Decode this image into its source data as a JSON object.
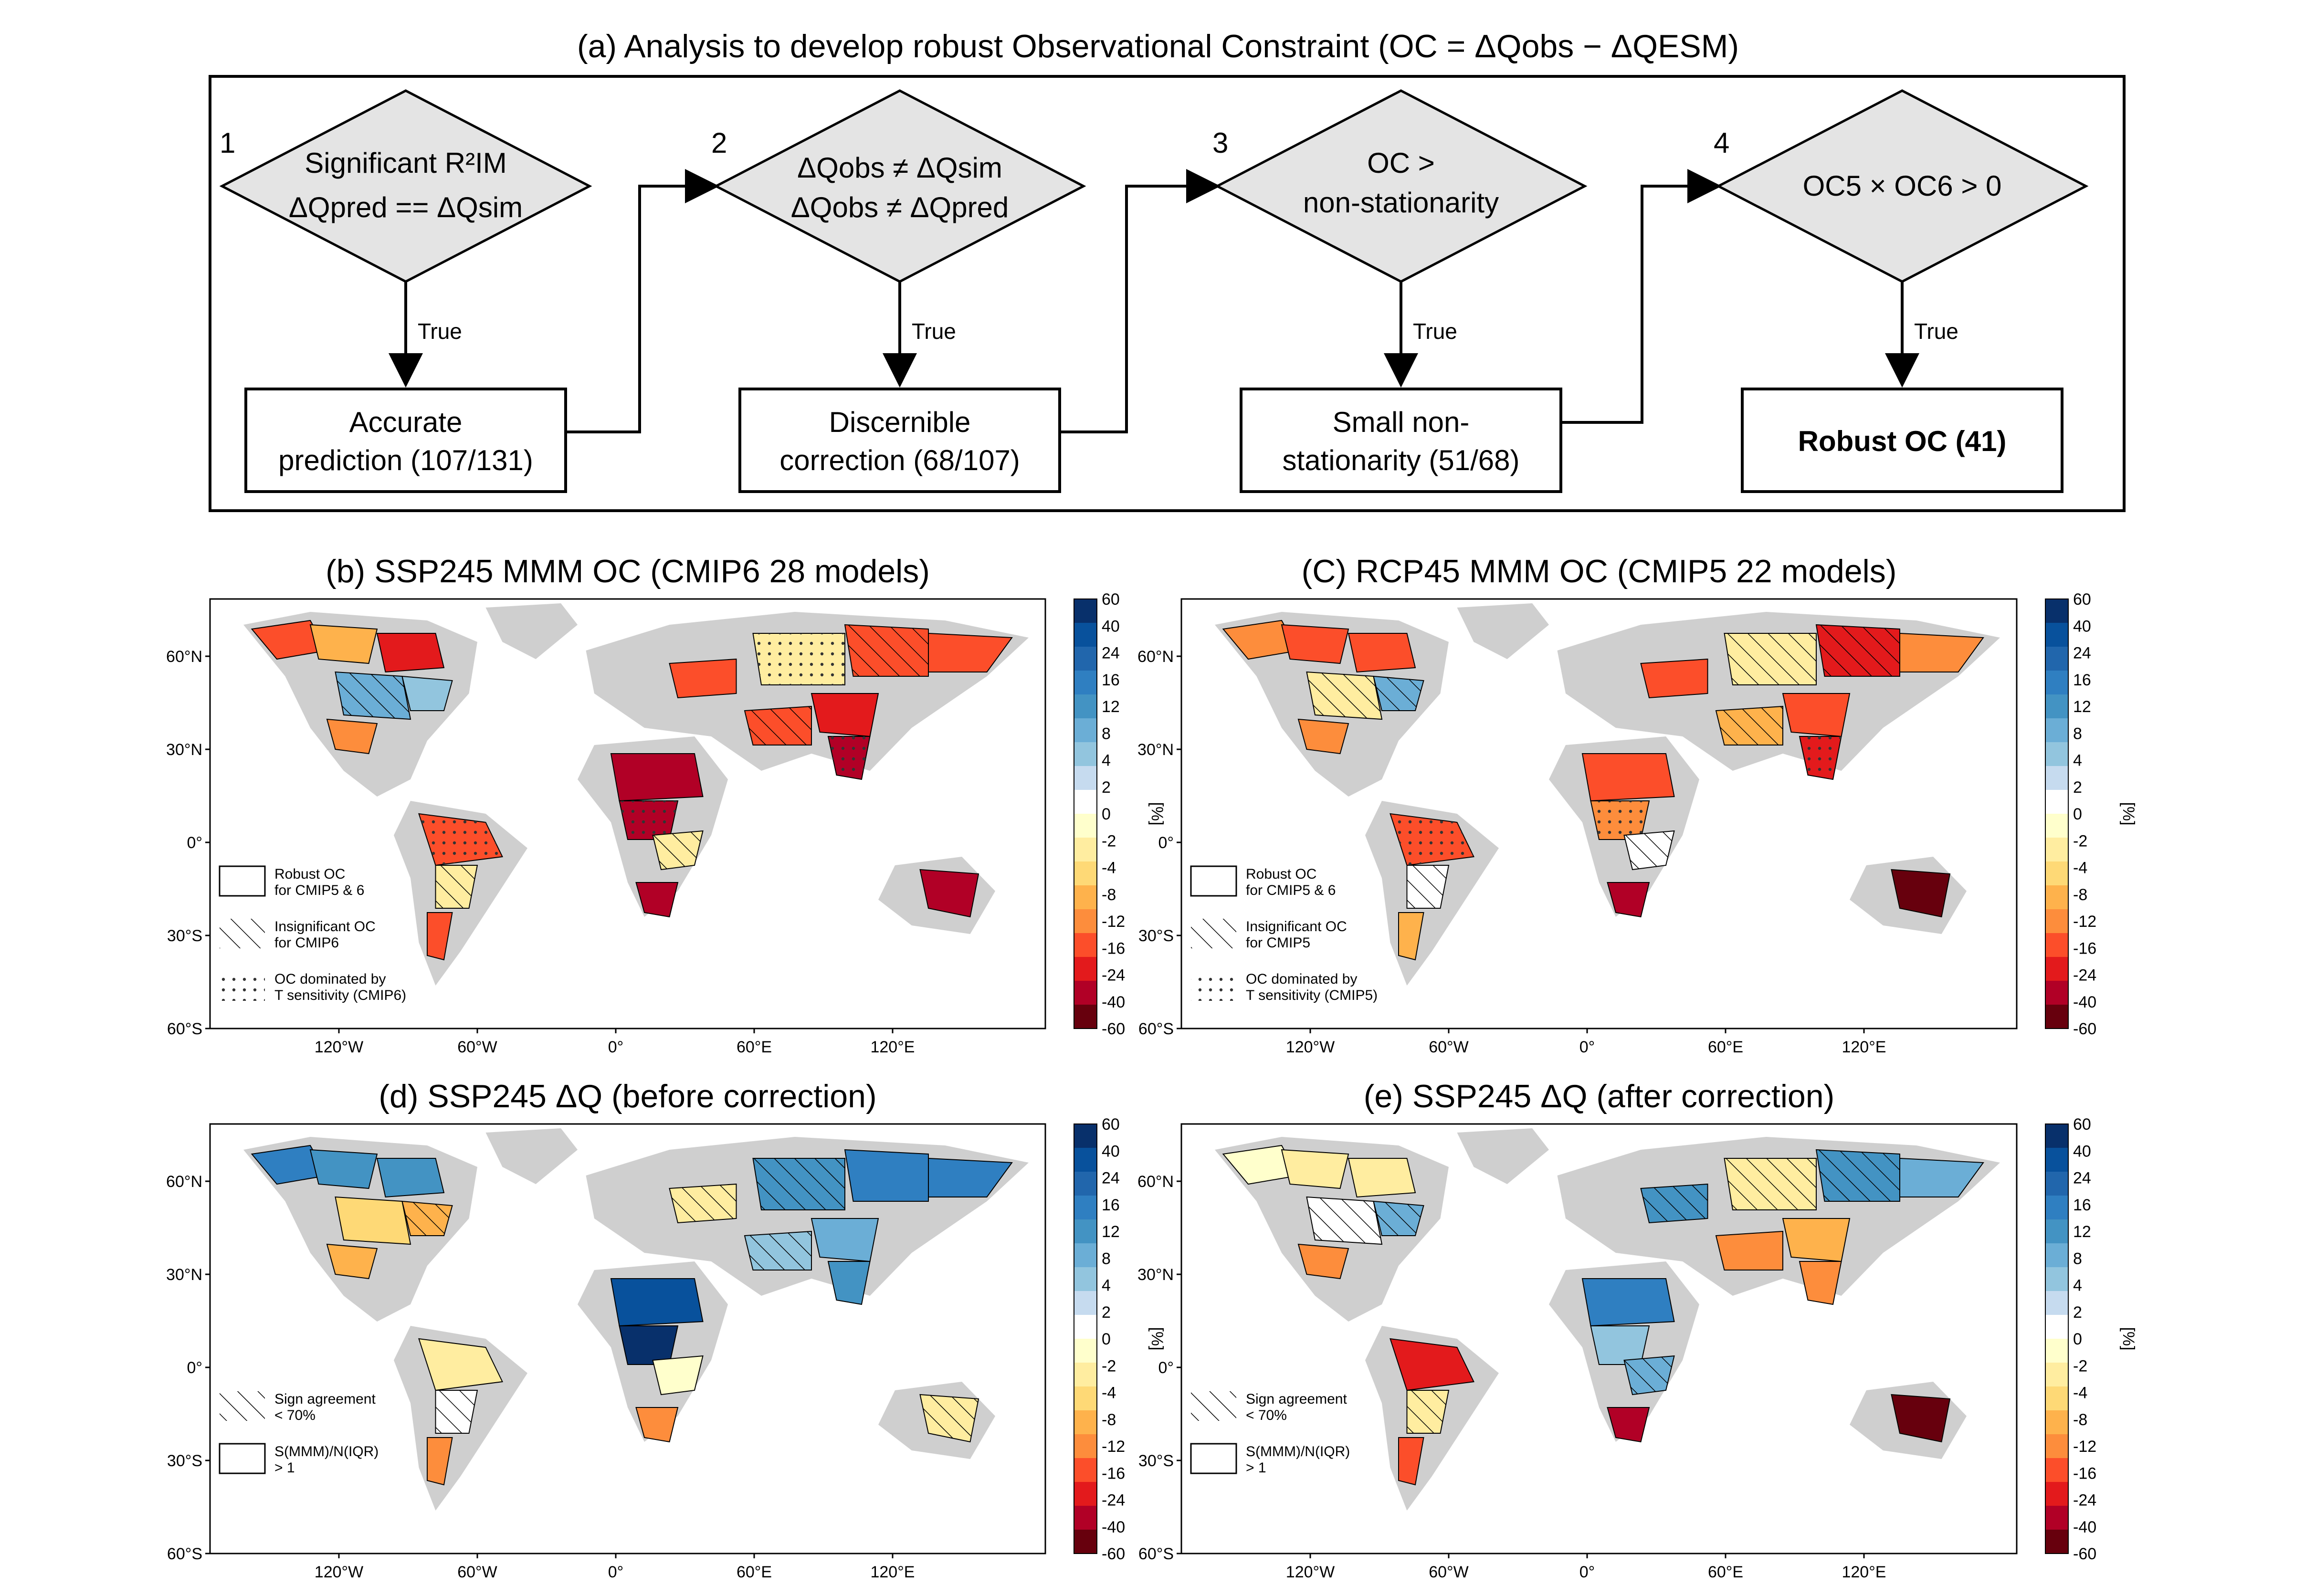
{
  "flowchart": {
    "title": "(a) Analysis to develop robust Observational Constraint (OC = ΔQobs − ΔQESM)",
    "steps": [
      {
        "num": "1",
        "cond_line1": "Significant R²IM",
        "cond_line2": "ΔQpred == ΔQsim",
        "edge": "True",
        "result_line1": "Accurate",
        "result_line2": "prediction (107/131)"
      },
      {
        "num": "2",
        "cond_line1": "ΔQobs ≠ ΔQsim",
        "cond_line2": "ΔQobs ≠ ΔQpred",
        "edge": "True",
        "result_line1": "Discernible",
        "result_line2": "correction (68/107)"
      },
      {
        "num": "3",
        "cond_line1": "OC >",
        "cond_line2": "non-stationarity",
        "edge": "True",
        "result_line1": "Small non-",
        "result_line2": "stationarity (51/68)"
      },
      {
        "num": "4",
        "cond_line1": "OC5 × OC6 > 0",
        "cond_line2": "",
        "edge": "True",
        "result_line1": "Robust OC (41)",
        "result_line2": ""
      }
    ]
  },
  "maps": [
    {
      "id": "b",
      "title": "(b) SSP245 MMM OC (CMIP6 28 models)",
      "legend": {
        "robust": [
          "Robust OC",
          "for CMIP5 & 6"
        ],
        "hatch": [
          "Insignificant OC",
          "for CMIP6"
        ],
        "dots": [
          "OC dominated by",
          "T sensitivity (CMIP6)"
        ]
      }
    },
    {
      "id": "c",
      "title": "(C) RCP45 MMM OC (CMIP5 22 models)",
      "legend": {
        "robust": [
          "Robust OC",
          "for CMIP5 & 6"
        ],
        "hatch": [
          "Insignificant OC",
          "for CMIP5"
        ],
        "dots": [
          "OC dominated by",
          "T sensitivity (CMIP5)"
        ]
      }
    },
    {
      "id": "d",
      "title": "(d) SSP245 ΔQ (before correction)",
      "legend": {
        "hatch": [
          "Sign agreement",
          "< 70%"
        ],
        "robust": [
          "S(MMM)/N(IQR)",
          "> 1"
        ]
      }
    },
    {
      "id": "e",
      "title": "(e) SSP245 ΔQ (after correction)",
      "legend": {
        "hatch": [
          "Sign agreement",
          "< 70%"
        ],
        "robust": [
          "S(MMM)/N(IQR)",
          "> 1"
        ]
      }
    }
  ],
  "axes": {
    "lat_ticks": [
      "60°N",
      "30°N",
      "0°",
      "30°S",
      "60°S"
    ],
    "lon_ticks": [
      "120°W",
      "60°W",
      "0°",
      "60°E",
      "120°E"
    ]
  },
  "colorbar": {
    "unit": "[%]",
    "ticks": [
      "60",
      "40",
      "24",
      "16",
      "12",
      "8",
      "4",
      "2",
      "0",
      "-2",
      "-4",
      "-8",
      "-12",
      "-16",
      "-24",
      "-40",
      "-60"
    ],
    "colors": [
      "#08306b",
      "#08519c",
      "#2166ac",
      "#2f7fc1",
      "#4393c3",
      "#6baed6",
      "#92c5de",
      "#c6dbef",
      "#ffffff",
      "#ffffcc",
      "#ffeda0",
      "#fed976",
      "#feb24c",
      "#fd8d3c",
      "#fc4e2a",
      "#e31a1c",
      "#b10026",
      "#67000d"
    ]
  }
}
